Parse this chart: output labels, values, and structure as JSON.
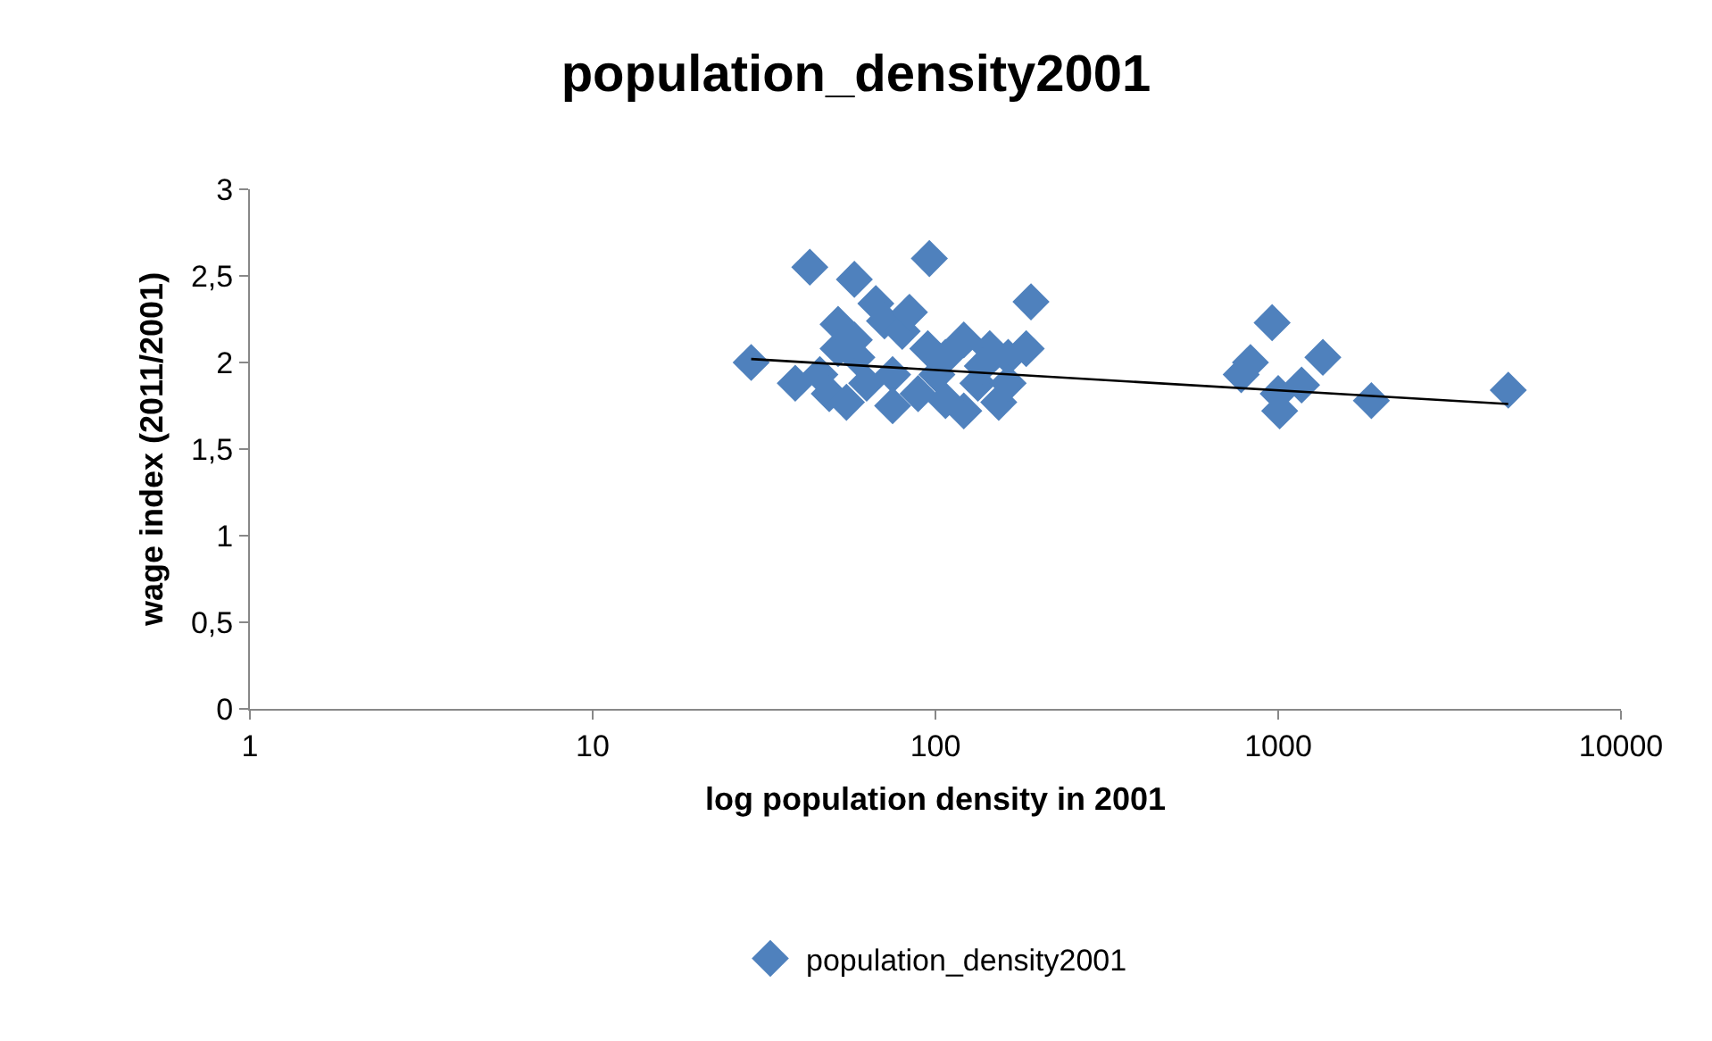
{
  "chart_data": {
    "type": "scatter",
    "title": "population_density2001",
    "xlabel": "log population density in 2001",
    "ylabel": "wage index (2011/2001)",
    "log": "x",
    "xlim": [
      1,
      10000
    ],
    "xticks": [
      1,
      10,
      100,
      1000,
      10000
    ],
    "ylim": [
      0,
      3
    ],
    "yticks": [
      0,
      {
        "value": 0.5,
        "label": "0,5"
      },
      1,
      {
        "value": 1.5,
        "label": "1,5"
      },
      2,
      {
        "value": 2.5,
        "label": "2,5"
      },
      3
    ],
    "grid": false,
    "legend": "bottom",
    "marker": "diamond",
    "series": [
      {
        "name": "population_density2001",
        "color": "#4f81bd",
        "x": [
          29,
          43,
          96,
          58,
          190,
          52,
          960,
          1350,
          830,
          780,
          1010,
          1000,
          1170,
          1870,
          4690,
          39,
          46,
          49,
          55,
          59,
          52,
          67,
          71,
          80,
          84,
          75,
          89,
          95,
          101,
          107,
          121,
          121,
          133,
          144,
          153,
          163,
          184,
          163,
          107,
          137,
          63,
          75,
          58
        ],
        "values": [
          2.0,
          2.55,
          2.6,
          2.48,
          2.35,
          2.22,
          2.23,
          2.03,
          2.0,
          1.93,
          1.72,
          1.82,
          1.87,
          1.78,
          1.84,
          1.88,
          1.93,
          1.82,
          1.77,
          2.03,
          2.08,
          2.34,
          2.24,
          2.18,
          2.29,
          1.93,
          1.82,
          2.08,
          1.93,
          2.03,
          2.13,
          1.72,
          1.88,
          2.08,
          1.77,
          2.03,
          2.08,
          1.88,
          1.78,
          1.98,
          1.88,
          1.75,
          2.13
        ]
      },
      {
        "type": "line",
        "color": "#000000",
        "x": [
          29,
          4690
        ],
        "values": [
          2.02,
          1.76
        ],
        "marker": "none"
      }
    ]
  }
}
